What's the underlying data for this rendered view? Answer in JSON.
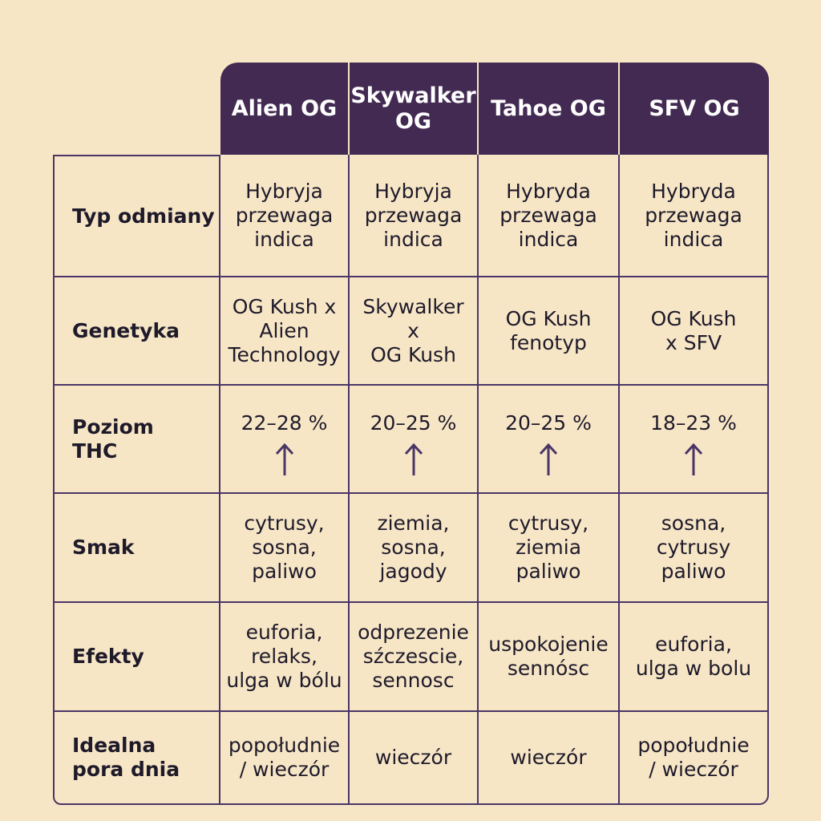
{
  "strains": [
    "Alien OG",
    "Skywalker\nOG",
    "Tahoe OG",
    "SFV OG"
  ],
  "row_labels": {
    "type": "Typ odmiany",
    "genetics": "Genetyka",
    "thc": "Poziom\nTHC",
    "taste": "Smak",
    "effects": "Efekty",
    "time": "Idealna\npora dnia"
  },
  "rows": {
    "type": [
      "Hybryja\nprzewaga\nindica",
      "Hybryja\nprzewaga\nindica",
      "Hybryda\nprzewaga\nindica",
      "Hybryda\nprzewaga\nindica"
    ],
    "genetics": [
      "OG Kush x\nAlien\nTechnology",
      "Skywalker\nx\nOG Kush",
      "OG Kush\nfenotyp",
      "OG Kush\nx SFV"
    ],
    "thc": [
      "22–28 %",
      "20–25 %",
      "20–25 %",
      "18–23 %"
    ],
    "taste": [
      "cytrusy,\nsosna,\npaliwo",
      "ziemia,\nsosna,\njagody",
      "cytrusy,\nziemia\npaliwo",
      "sosna,\ncytrusy\npaliwo"
    ],
    "effects": [
      "euforia,\nrelaks,\nulga w bólu",
      "odprezenie\nsźczescie,\nsennosc",
      "uspokojenie\nsennósc",
      "euforia,\nulga w bolu"
    ],
    "time": [
      "popołudnie\n/ wieczór",
      "wieczór",
      "wieczór",
      "popołudnie\n/ wieczór"
    ]
  },
  "icons": {
    "thc_indicator": "arrow-up-icon"
  },
  "colors": {
    "header_bg": "#432a52",
    "background": "#f7e6c6",
    "border": "#4a3566",
    "arrow": "#4a3566"
  }
}
